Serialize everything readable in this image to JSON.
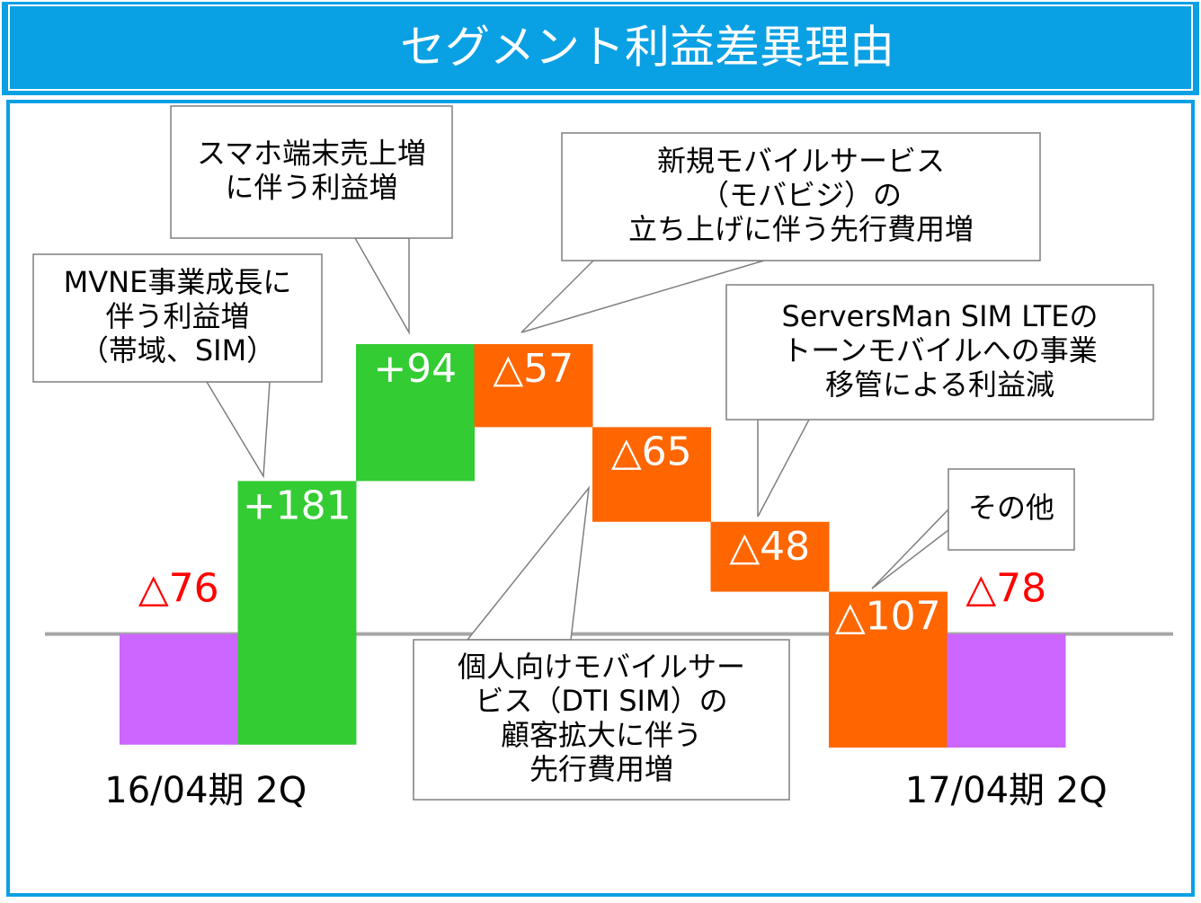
{
  "chart_data": {
    "type": "waterfall",
    "title": "セグメント利益差異理由",
    "categories": [
      "16/04期 2Q",
      null,
      null,
      null,
      null,
      null,
      null,
      "17/04期 2Q"
    ],
    "values": [
      -76,
      181,
      94,
      -57,
      -65,
      -48,
      -107,
      -78
    ],
    "value_labels": [
      "△76",
      "+181",
      "+94",
      "△57",
      "△65",
      "△48",
      "△107",
      "△78"
    ],
    "colors": {
      "total": "#cc66ff",
      "increase": "#33cc33",
      "decrease": "#ff6600"
    },
    "label_colors": {
      "total": "#ff0000",
      "bar": "#ffffff"
    },
    "annotations": [
      {
        "lines": [
          "MVNE事業成長に",
          "伴う利益増",
          "（帯域、SIM）"
        ]
      },
      {
        "lines": [
          "スマホ端末売上増",
          "に伴う利益増"
        ]
      },
      {
        "lines": [
          "新規モバイルサービス",
          "（モバビジ）の",
          "立ち上げに伴う先行費用増"
        ]
      },
      {
        "lines": [
          "個人向けモバイルサー",
          "ビス（DTI SIM）の",
          "顧客拡大に伴う",
          "先行費用増"
        ]
      },
      {
        "lines": [
          "ServersMan SIM LTEの",
          "トーンモバイルへの事業",
          "移管による利益減"
        ]
      },
      {
        "lines": [
          "その他"
        ]
      }
    ]
  }
}
